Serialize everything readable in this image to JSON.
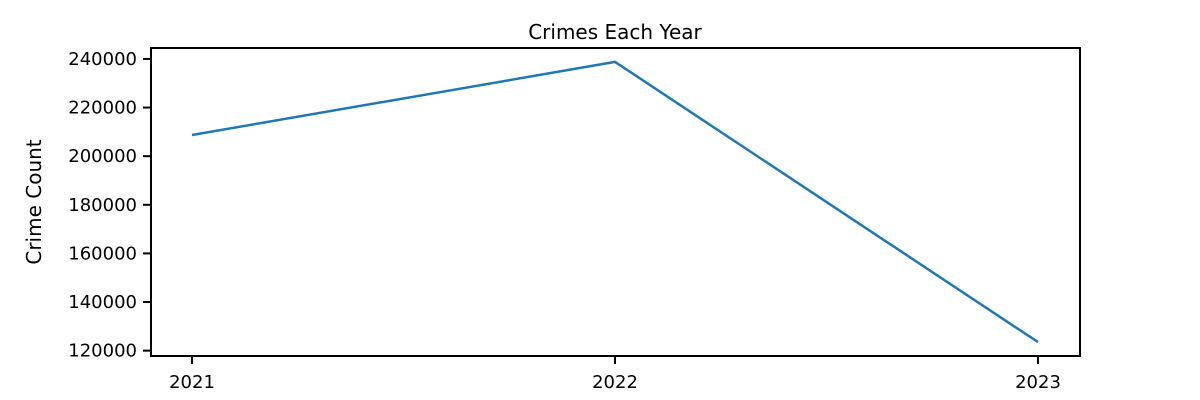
{
  "chart_data": {
    "type": "line",
    "title": "Crimes Each Year",
    "xlabel": "",
    "ylabel": "Crime Count",
    "x": [
      "2021",
      "2022",
      "2023"
    ],
    "series": [
      {
        "values": [
          208700,
          238800,
          123500
        ],
        "color": "#1f77b4"
      }
    ],
    "yticks": [
      120000,
      140000,
      160000,
      180000,
      200000,
      220000,
      240000
    ],
    "ytick_labels": [
      "120000",
      "140000",
      "160000",
      "180000",
      "200000",
      "220000",
      "240000"
    ],
    "ylim": [
      117800,
      244500
    ],
    "grid": false,
    "legend": "none"
  }
}
